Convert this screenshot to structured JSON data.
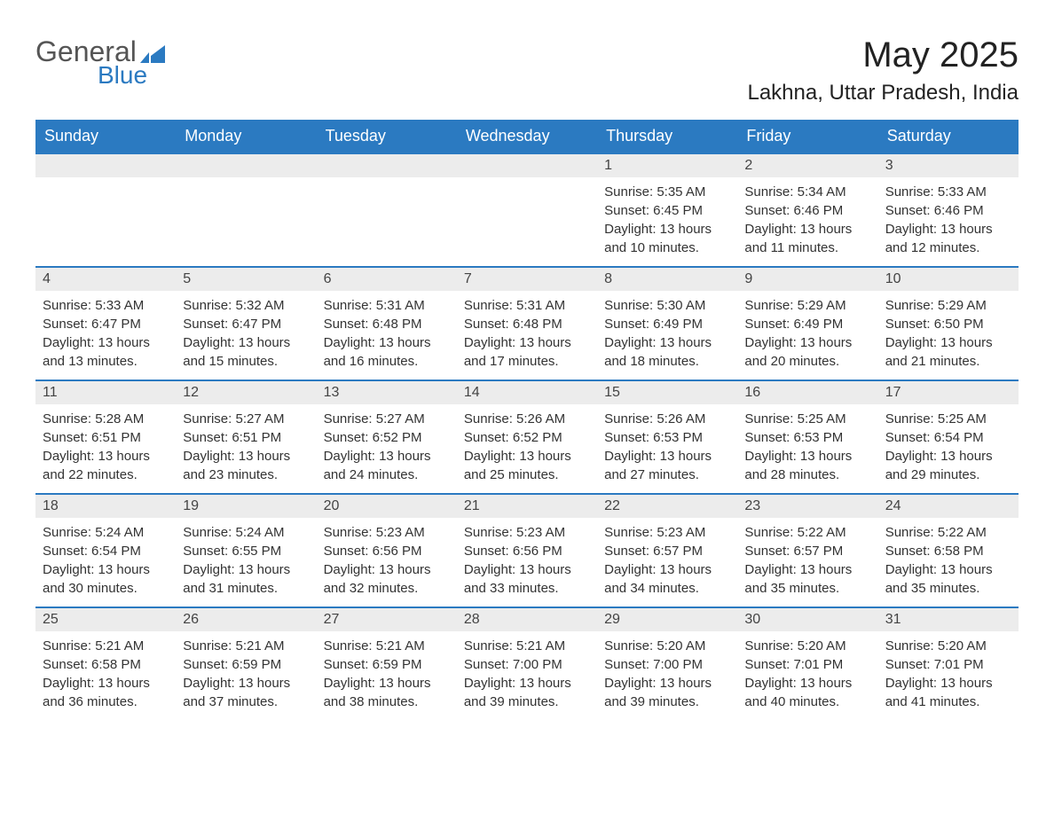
{
  "logo": {
    "general": "General",
    "blue": "Blue",
    "flag_color": "#2b7ac1"
  },
  "title": "May 2025",
  "location": "Lakhna, Uttar Pradesh, India",
  "colors": {
    "header_bg": "#2b7ac1",
    "header_text": "#ffffff",
    "daynum_bg": "#ececec",
    "row_border": "#2b7ac1",
    "body_text": "#333333"
  },
  "day_names": [
    "Sunday",
    "Monday",
    "Tuesday",
    "Wednesday",
    "Thursday",
    "Friday",
    "Saturday"
  ],
  "weeks": [
    [
      null,
      null,
      null,
      null,
      {
        "n": "1",
        "sunrise": "Sunrise: 5:35 AM",
        "sunset": "Sunset: 6:45 PM",
        "dl1": "Daylight: 13 hours",
        "dl2": "and 10 minutes."
      },
      {
        "n": "2",
        "sunrise": "Sunrise: 5:34 AM",
        "sunset": "Sunset: 6:46 PM",
        "dl1": "Daylight: 13 hours",
        "dl2": "and 11 minutes."
      },
      {
        "n": "3",
        "sunrise": "Sunrise: 5:33 AM",
        "sunset": "Sunset: 6:46 PM",
        "dl1": "Daylight: 13 hours",
        "dl2": "and 12 minutes."
      }
    ],
    [
      {
        "n": "4",
        "sunrise": "Sunrise: 5:33 AM",
        "sunset": "Sunset: 6:47 PM",
        "dl1": "Daylight: 13 hours",
        "dl2": "and 13 minutes."
      },
      {
        "n": "5",
        "sunrise": "Sunrise: 5:32 AM",
        "sunset": "Sunset: 6:47 PM",
        "dl1": "Daylight: 13 hours",
        "dl2": "and 15 minutes."
      },
      {
        "n": "6",
        "sunrise": "Sunrise: 5:31 AM",
        "sunset": "Sunset: 6:48 PM",
        "dl1": "Daylight: 13 hours",
        "dl2": "and 16 minutes."
      },
      {
        "n": "7",
        "sunrise": "Sunrise: 5:31 AM",
        "sunset": "Sunset: 6:48 PM",
        "dl1": "Daylight: 13 hours",
        "dl2": "and 17 minutes."
      },
      {
        "n": "8",
        "sunrise": "Sunrise: 5:30 AM",
        "sunset": "Sunset: 6:49 PM",
        "dl1": "Daylight: 13 hours",
        "dl2": "and 18 minutes."
      },
      {
        "n": "9",
        "sunrise": "Sunrise: 5:29 AM",
        "sunset": "Sunset: 6:49 PM",
        "dl1": "Daylight: 13 hours",
        "dl2": "and 20 minutes."
      },
      {
        "n": "10",
        "sunrise": "Sunrise: 5:29 AM",
        "sunset": "Sunset: 6:50 PM",
        "dl1": "Daylight: 13 hours",
        "dl2": "and 21 minutes."
      }
    ],
    [
      {
        "n": "11",
        "sunrise": "Sunrise: 5:28 AM",
        "sunset": "Sunset: 6:51 PM",
        "dl1": "Daylight: 13 hours",
        "dl2": "and 22 minutes."
      },
      {
        "n": "12",
        "sunrise": "Sunrise: 5:27 AM",
        "sunset": "Sunset: 6:51 PM",
        "dl1": "Daylight: 13 hours",
        "dl2": "and 23 minutes."
      },
      {
        "n": "13",
        "sunrise": "Sunrise: 5:27 AM",
        "sunset": "Sunset: 6:52 PM",
        "dl1": "Daylight: 13 hours",
        "dl2": "and 24 minutes."
      },
      {
        "n": "14",
        "sunrise": "Sunrise: 5:26 AM",
        "sunset": "Sunset: 6:52 PM",
        "dl1": "Daylight: 13 hours",
        "dl2": "and 25 minutes."
      },
      {
        "n": "15",
        "sunrise": "Sunrise: 5:26 AM",
        "sunset": "Sunset: 6:53 PM",
        "dl1": "Daylight: 13 hours",
        "dl2": "and 27 minutes."
      },
      {
        "n": "16",
        "sunrise": "Sunrise: 5:25 AM",
        "sunset": "Sunset: 6:53 PM",
        "dl1": "Daylight: 13 hours",
        "dl2": "and 28 minutes."
      },
      {
        "n": "17",
        "sunrise": "Sunrise: 5:25 AM",
        "sunset": "Sunset: 6:54 PM",
        "dl1": "Daylight: 13 hours",
        "dl2": "and 29 minutes."
      }
    ],
    [
      {
        "n": "18",
        "sunrise": "Sunrise: 5:24 AM",
        "sunset": "Sunset: 6:54 PM",
        "dl1": "Daylight: 13 hours",
        "dl2": "and 30 minutes."
      },
      {
        "n": "19",
        "sunrise": "Sunrise: 5:24 AM",
        "sunset": "Sunset: 6:55 PM",
        "dl1": "Daylight: 13 hours",
        "dl2": "and 31 minutes."
      },
      {
        "n": "20",
        "sunrise": "Sunrise: 5:23 AM",
        "sunset": "Sunset: 6:56 PM",
        "dl1": "Daylight: 13 hours",
        "dl2": "and 32 minutes."
      },
      {
        "n": "21",
        "sunrise": "Sunrise: 5:23 AM",
        "sunset": "Sunset: 6:56 PM",
        "dl1": "Daylight: 13 hours",
        "dl2": "and 33 minutes."
      },
      {
        "n": "22",
        "sunrise": "Sunrise: 5:23 AM",
        "sunset": "Sunset: 6:57 PM",
        "dl1": "Daylight: 13 hours",
        "dl2": "and 34 minutes."
      },
      {
        "n": "23",
        "sunrise": "Sunrise: 5:22 AM",
        "sunset": "Sunset: 6:57 PM",
        "dl1": "Daylight: 13 hours",
        "dl2": "and 35 minutes."
      },
      {
        "n": "24",
        "sunrise": "Sunrise: 5:22 AM",
        "sunset": "Sunset: 6:58 PM",
        "dl1": "Daylight: 13 hours",
        "dl2": "and 35 minutes."
      }
    ],
    [
      {
        "n": "25",
        "sunrise": "Sunrise: 5:21 AM",
        "sunset": "Sunset: 6:58 PM",
        "dl1": "Daylight: 13 hours",
        "dl2": "and 36 minutes."
      },
      {
        "n": "26",
        "sunrise": "Sunrise: 5:21 AM",
        "sunset": "Sunset: 6:59 PM",
        "dl1": "Daylight: 13 hours",
        "dl2": "and 37 minutes."
      },
      {
        "n": "27",
        "sunrise": "Sunrise: 5:21 AM",
        "sunset": "Sunset: 6:59 PM",
        "dl1": "Daylight: 13 hours",
        "dl2": "and 38 minutes."
      },
      {
        "n": "28",
        "sunrise": "Sunrise: 5:21 AM",
        "sunset": "Sunset: 7:00 PM",
        "dl1": "Daylight: 13 hours",
        "dl2": "and 39 minutes."
      },
      {
        "n": "29",
        "sunrise": "Sunrise: 5:20 AM",
        "sunset": "Sunset: 7:00 PM",
        "dl1": "Daylight: 13 hours",
        "dl2": "and 39 minutes."
      },
      {
        "n": "30",
        "sunrise": "Sunrise: 5:20 AM",
        "sunset": "Sunset: 7:01 PM",
        "dl1": "Daylight: 13 hours",
        "dl2": "and 40 minutes."
      },
      {
        "n": "31",
        "sunrise": "Sunrise: 5:20 AM",
        "sunset": "Sunset: 7:01 PM",
        "dl1": "Daylight: 13 hours",
        "dl2": "and 41 minutes."
      }
    ]
  ]
}
